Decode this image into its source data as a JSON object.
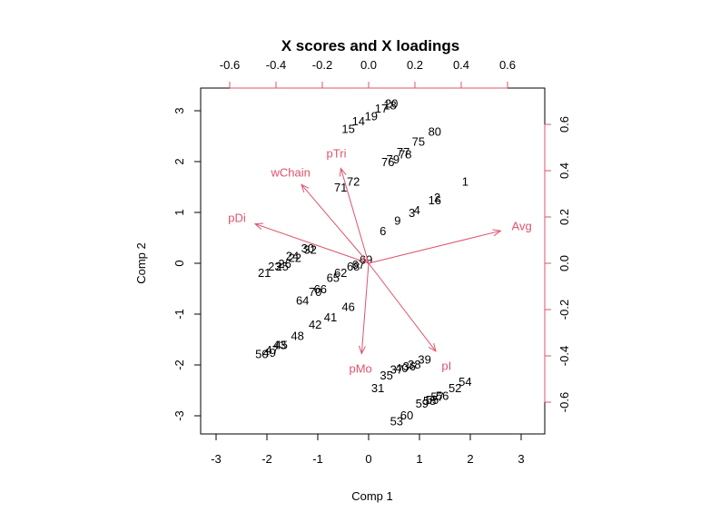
{
  "chart_data": {
    "type": "scatter",
    "subtype": "biplot",
    "title": "X scores and X loadings",
    "xlabel": "Comp 1",
    "ylabel": "Comp 2",
    "xlim": [
      -3.3,
      3.4
    ],
    "ylim": [
      -3.36,
      3.4
    ],
    "x_ticks": [
      "-3",
      "-2",
      "-1",
      "0",
      "1",
      "2",
      "3"
    ],
    "y_ticks": [
      "-3",
      "-2",
      "-1",
      "0",
      "1",
      "2",
      "3"
    ],
    "top_ticks": [
      "-0.6",
      "-0.4",
      "-0.2",
      "0.0",
      "0.2",
      "0.4",
      "0.6"
    ],
    "right_ticks": [
      "-0.6",
      "-0.4",
      "-0.2",
      "0.0",
      "0.2",
      "0.4",
      "0.6"
    ],
    "loading_color": "#DF536B",
    "score_color": "#000000",
    "grid": false,
    "scores": [
      {
        "label": "1",
        "x": 1.9,
        "y": 1.62
      },
      {
        "label": "2",
        "x": 1.35,
        "y": 1.3
      },
      {
        "label": "16",
        "x": 1.3,
        "y": 1.25
      },
      {
        "label": "3",
        "x": 0.85,
        "y": 1.0
      },
      {
        "label": "4",
        "x": 0.95,
        "y": 1.05
      },
      {
        "label": "9",
        "x": 0.57,
        "y": 0.85
      },
      {
        "label": "6",
        "x": 0.28,
        "y": 0.64
      },
      {
        "label": "80",
        "x": 1.3,
        "y": 2.6
      },
      {
        "label": "75",
        "x": 0.98,
        "y": 2.4
      },
      {
        "label": "77",
        "x": 0.68,
        "y": 2.2
      },
      {
        "label": "78",
        "x": 0.72,
        "y": 2.15
      },
      {
        "label": "79",
        "x": 0.48,
        "y": 2.05
      },
      {
        "label": "76",
        "x": 0.38,
        "y": 2.0
      },
      {
        "label": "20",
        "x": 0.45,
        "y": 3.15
      },
      {
        "label": "18",
        "x": 0.42,
        "y": 3.12
      },
      {
        "label": "17",
        "x": 0.25,
        "y": 3.05
      },
      {
        "label": "19",
        "x": 0.05,
        "y": 2.9
      },
      {
        "label": "14",
        "x": -0.2,
        "y": 2.8
      },
      {
        "label": "15",
        "x": -0.4,
        "y": 2.65
      },
      {
        "label": "72",
        "x": -0.3,
        "y": 1.62
      },
      {
        "label": "71",
        "x": -0.55,
        "y": 1.5
      },
      {
        "label": "30",
        "x": -1.2,
        "y": 0.3
      },
      {
        "label": "32",
        "x": -1.15,
        "y": 0.28
      },
      {
        "label": "24",
        "x": -1.5,
        "y": 0.15
      },
      {
        "label": "22",
        "x": -1.45,
        "y": 0.12
      },
      {
        "label": "26",
        "x": -1.65,
        "y": 0.0
      },
      {
        "label": "25",
        "x": -1.7,
        "y": -0.05
      },
      {
        "label": "23",
        "x": -1.85,
        "y": -0.05
      },
      {
        "label": "21",
        "x": -2.05,
        "y": -0.18
      },
      {
        "label": "69",
        "x": -0.05,
        "y": 0.08
      },
      {
        "label": "67",
        "x": -0.2,
        "y": -0.02
      },
      {
        "label": "68",
        "x": -0.3,
        "y": -0.05
      },
      {
        "label": "62",
        "x": -0.55,
        "y": -0.18
      },
      {
        "label": "65",
        "x": -0.7,
        "y": -0.28
      },
      {
        "label": "66",
        "x": -0.95,
        "y": -0.5
      },
      {
        "label": "70",
        "x": -1.05,
        "y": -0.55
      },
      {
        "label": "64",
        "x": -1.3,
        "y": -0.72
      },
      {
        "label": "46",
        "x": -0.4,
        "y": -0.85
      },
      {
        "label": "41",
        "x": -0.75,
        "y": -1.05
      },
      {
        "label": "42",
        "x": -1.05,
        "y": -1.2
      },
      {
        "label": "48",
        "x": -1.4,
        "y": -1.42
      },
      {
        "label": "45",
        "x": -1.72,
        "y": -1.6
      },
      {
        "label": "43",
        "x": -1.75,
        "y": -1.6
      },
      {
        "label": "47",
        "x": -1.9,
        "y": -1.7
      },
      {
        "label": "50",
        "x": -2.1,
        "y": -1.78
      },
      {
        "label": "49",
        "x": -1.95,
        "y": -1.75
      },
      {
        "label": "39",
        "x": 1.1,
        "y": -1.88
      },
      {
        "label": "38",
        "x": 0.9,
        "y": -1.98
      },
      {
        "label": "36",
        "x": 0.8,
        "y": -2.02
      },
      {
        "label": "40",
        "x": 0.65,
        "y": -2.05
      },
      {
        "label": "37",
        "x": 0.55,
        "y": -2.08
      },
      {
        "label": "35",
        "x": 0.35,
        "y": -2.2
      },
      {
        "label": "31",
        "x": 0.18,
        "y": -2.45
      },
      {
        "label": "54",
        "x": 1.9,
        "y": -2.32
      },
      {
        "label": "52",
        "x": 1.7,
        "y": -2.45
      },
      {
        "label": "56",
        "x": 1.45,
        "y": -2.6
      },
      {
        "label": "57",
        "x": 1.35,
        "y": -2.62
      },
      {
        "label": "55",
        "x": 1.25,
        "y": -2.68
      },
      {
        "label": "59",
        "x": 1.05,
        "y": -2.75
      },
      {
        "label": "58",
        "x": 1.2,
        "y": -2.7
      },
      {
        "label": "60",
        "x": 0.75,
        "y": -2.98
      },
      {
        "label": "53",
        "x": 0.55,
        "y": -3.1
      }
    ],
    "loadings": [
      {
        "label": "Avg",
        "x": 0.57,
        "y": 0.14
      },
      {
        "label": "pDi",
        "x": -0.49,
        "y": 0.17
      },
      {
        "label": "wChain",
        "x": -0.29,
        "y": 0.34
      },
      {
        "label": "pTri",
        "x": -0.12,
        "y": 0.41
      },
      {
        "label": "pMo",
        "x": -0.03,
        "y": -0.39
      },
      {
        "label": "pI",
        "x": 0.29,
        "y": -0.38
      }
    ]
  }
}
